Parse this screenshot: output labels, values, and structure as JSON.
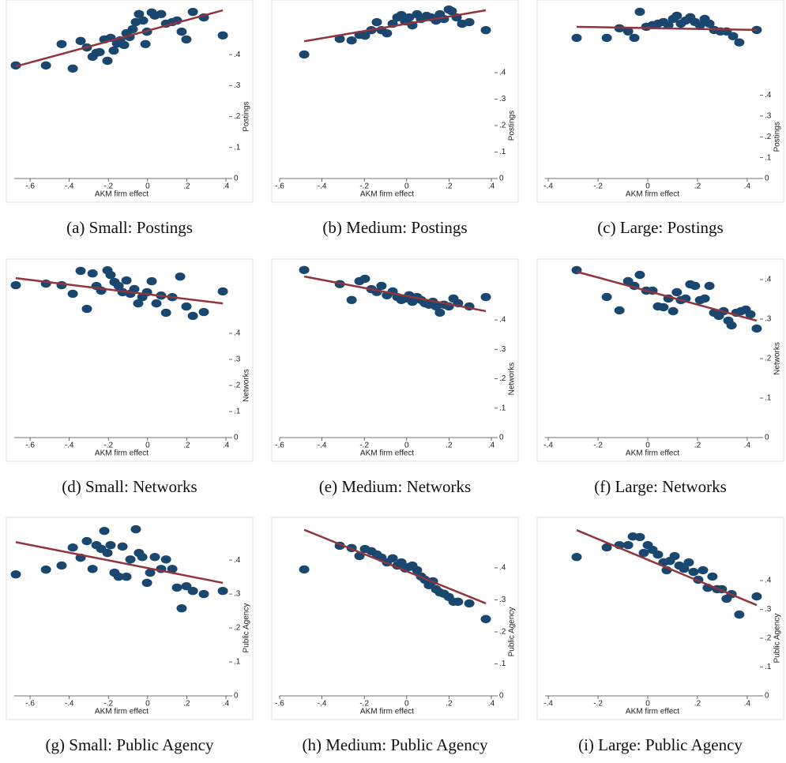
{
  "chart_data": [
    {
      "type": "scatter",
      "caption": "(a) Small: Postings",
      "xlabel": "AKM firm effect",
      "ylabel": "Postings",
      "x": [
        -0.673,
        -0.519,
        -0.439,
        -0.382,
        -0.342,
        -0.31,
        -0.281,
        -0.261,
        -0.245,
        -0.221,
        -0.205,
        -0.189,
        -0.173,
        -0.156,
        -0.14,
        -0.12,
        -0.108,
        -0.092,
        -0.076,
        -0.06,
        -0.044,
        -0.023,
        -0.011,
        -0.003,
        0.021,
        0.037,
        0.069,
        0.094,
        0.126,
        0.15,
        0.174,
        0.198,
        0.231,
        0.287,
        0.384
      ],
      "y": [
        0.365,
        0.365,
        0.434,
        0.355,
        0.444,
        0.423,
        0.393,
        0.406,
        0.408,
        0.449,
        0.38,
        0.454,
        0.413,
        0.436,
        0.446,
        0.431,
        0.469,
        0.457,
        0.482,
        0.505,
        0.531,
        0.51,
        0.434,
        0.474,
        0.536,
        0.526,
        0.531,
        0.5,
        0.505,
        0.51,
        0.474,
        0.449,
        0.538,
        0.52,
        0.462
      ],
      "fit_x": [
        -0.673,
        0.384
      ],
      "fit_y": [
        0.362,
        0.543
      ],
      "xlim": [
        -0.681,
        0.416
      ],
      "ylim": [
        0,
        0.561
      ],
      "xticks": [
        {
          "value": -0.6,
          "label": "-.6"
        },
        {
          "value": -0.4,
          "label": "-.4"
        },
        {
          "value": -0.2,
          "label": "-.2"
        },
        0,
        {
          "value": 0.2,
          "label": ".2"
        },
        {
          "value": 0.4,
          "label": ".4"
        }
      ],
      "yticks": [
        0,
        {
          "value": 0.1,
          "label": ".1"
        },
        {
          "value": 0.2,
          "label": ".2"
        },
        {
          "value": 0.3,
          "label": ".3"
        },
        {
          "value": 0.4,
          "label": ".4"
        }
      ],
      "color": "#1a476f",
      "fit_color": "#90353b"
    },
    {
      "type": "scatter",
      "caption": "(b) Medium: Postings",
      "xlabel": "AKM firm effect",
      "ylabel": "Postings",
      "x": [
        -0.484,
        -0.316,
        -0.26,
        -0.223,
        -0.197,
        -0.167,
        -0.141,
        -0.119,
        -0.093,
        -0.066,
        -0.044,
        -0.025,
        -0.007,
        0.012,
        0.027,
        0.049,
        0.068,
        0.094,
        0.116,
        0.139,
        0.157,
        0.176,
        0.199,
        0.213,
        0.236,
        0.262,
        0.296,
        0.374
      ],
      "y": [
        0.469,
        0.528,
        0.522,
        0.543,
        0.54,
        0.561,
        0.591,
        0.561,
        0.549,
        0.585,
        0.609,
        0.618,
        0.594,
        0.609,
        0.579,
        0.621,
        0.603,
        0.615,
        0.609,
        0.597,
        0.621,
        0.603,
        0.639,
        0.633,
        0.609,
        0.585,
        0.591,
        0.561
      ],
      "fit_x": [
        -0.484,
        0.374
      ],
      "fit_y": [
        0.519,
        0.636
      ],
      "xlim": [
        -0.6,
        0.415
      ],
      "ylim": [
        0,
        0.657
      ],
      "xticks": [
        {
          "value": -0.6,
          "label": "-.6"
        },
        {
          "value": -0.4,
          "label": "-.4"
        },
        {
          "value": -0.2,
          "label": "-.2"
        },
        0,
        {
          "value": 0.2,
          "label": ".2"
        },
        {
          "value": 0.4,
          "label": ".4"
        }
      ],
      "yticks": [
        0,
        {
          "value": 0.1,
          "label": ".1"
        },
        {
          "value": 0.2,
          "label": ".2"
        },
        {
          "value": 0.3,
          "label": ".3"
        },
        {
          "value": 0.4,
          "label": ".4"
        }
      ],
      "color": "#1a476f",
      "fit_color": "#90353b"
    },
    {
      "type": "scatter",
      "caption": "(c) Large: Postings",
      "xlabel": "AKM firm effect",
      "ylabel": "Postings",
      "x": [
        -0.286,
        -0.165,
        -0.114,
        -0.079,
        -0.054,
        -0.032,
        -0.006,
        0.019,
        0.041,
        0.063,
        0.083,
        0.102,
        0.117,
        0.133,
        0.152,
        0.171,
        0.19,
        0.21,
        0.229,
        0.248,
        0.267,
        0.292,
        0.317,
        0.343,
        0.368,
        0.438
      ],
      "y": [
        0.675,
        0.675,
        0.721,
        0.706,
        0.675,
        0.8,
        0.728,
        0.736,
        0.743,
        0.751,
        0.736,
        0.766,
        0.781,
        0.743,
        0.758,
        0.774,
        0.751,
        0.736,
        0.766,
        0.743,
        0.713,
        0.706,
        0.706,
        0.683,
        0.653,
        0.713
      ],
      "fit_x": [
        -0.286,
        0.438
      ],
      "fit_y": [
        0.728,
        0.713
      ],
      "xlim": [
        -0.413,
        0.451
      ],
      "ylim": [
        0,
        0.834
      ],
      "xticks": [
        {
          "value": -0.4,
          "label": "-.4"
        },
        {
          "value": -0.2,
          "label": "-.2"
        },
        0,
        {
          "value": 0.2,
          "label": ".2"
        },
        {
          "value": 0.4,
          "label": ".4"
        }
      ],
      "yticks": [
        0,
        {
          "value": 0.1,
          "label": ".1"
        },
        {
          "value": 0.2,
          "label": ".2"
        },
        {
          "value": 0.3,
          "label": ".3"
        },
        {
          "value": 0.4,
          "label": ".4"
        }
      ],
      "color": "#1a476f",
      "fit_color": "#90353b"
    },
    {
      "type": "scatter",
      "caption": "(d) Small: Networks",
      "xlabel": "AKM firm effect",
      "ylabel": "Networks",
      "x": [
        -0.673,
        -0.519,
        -0.439,
        -0.382,
        -0.342,
        -0.31,
        -0.281,
        -0.261,
        -0.237,
        -0.205,
        -0.189,
        -0.169,
        -0.148,
        -0.128,
        -0.108,
        -0.088,
        -0.068,
        -0.048,
        -0.027,
        -0.003,
        0.021,
        0.045,
        0.069,
        0.094,
        0.126,
        0.166,
        0.198,
        0.231,
        0.287,
        0.384
      ],
      "y": [
        0.585,
        0.591,
        0.585,
        0.552,
        0.64,
        0.494,
        0.63,
        0.582,
        0.564,
        0.642,
        0.624,
        0.597,
        0.582,
        0.558,
        0.603,
        0.552,
        0.57,
        0.515,
        0.539,
        0.558,
        0.6,
        0.515,
        0.545,
        0.479,
        0.539,
        0.618,
        0.503,
        0.467,
        0.482,
        0.561
      ],
      "fit_x": [
        -0.673,
        0.384
      ],
      "fit_y": [
        0.612,
        0.515
      ],
      "xlim": [
        -0.681,
        0.416
      ],
      "ylim": [
        0,
        0.667
      ],
      "xticks": [
        {
          "value": -0.6,
          "label": "-.6"
        },
        {
          "value": -0.4,
          "label": "-.4"
        },
        {
          "value": -0.2,
          "label": "-.2"
        },
        0,
        {
          "value": 0.2,
          "label": ".2"
        },
        {
          "value": 0.4,
          "label": ".4"
        }
      ],
      "yticks": [
        0,
        {
          "value": 0.1,
          "label": ".1"
        },
        {
          "value": 0.2,
          "label": ".2"
        },
        {
          "value": 0.3,
          "label": ".3"
        },
        {
          "value": 0.4,
          "label": ".4"
        }
      ],
      "color": "#1a476f",
      "fit_color": "#90353b"
    },
    {
      "type": "scatter",
      "caption": "(e) Medium: Networks",
      "xlabel": "AKM firm effect",
      "ylabel": "Networks",
      "x": [
        -0.484,
        -0.316,
        -0.26,
        -0.223,
        -0.197,
        -0.167,
        -0.141,
        -0.119,
        -0.093,
        -0.066,
        -0.044,
        -0.025,
        -0.007,
        0.012,
        0.027,
        0.049,
        0.068,
        0.086,
        0.105,
        0.124,
        0.139,
        0.157,
        0.176,
        0.199,
        0.221,
        0.243,
        0.296,
        0.374
      ],
      "y": [
        0.57,
        0.522,
        0.468,
        0.532,
        0.54,
        0.505,
        0.495,
        0.516,
        0.484,
        0.497,
        0.478,
        0.468,
        0.473,
        0.484,
        0.462,
        0.478,
        0.468,
        0.457,
        0.452,
        0.462,
        0.446,
        0.425,
        0.452,
        0.446,
        0.473,
        0.457,
        0.446,
        0.478
      ],
      "fit_x": [
        -0.484,
        0.374
      ],
      "fit_y": [
        0.548,
        0.43
      ],
      "xlim": [
        -0.6,
        0.415
      ],
      "ylim": [
        0,
        0.591
      ],
      "xticks": [
        {
          "value": -0.6,
          "label": "-.6"
        },
        {
          "value": -0.4,
          "label": "-.4"
        },
        {
          "value": -0.2,
          "label": "-.2"
        },
        0,
        {
          "value": 0.2,
          "label": ".2"
        },
        {
          "value": 0.4,
          "label": ".4"
        }
      ],
      "yticks": [
        0,
        {
          "value": 0.1,
          "label": ".1"
        },
        {
          "value": 0.2,
          "label": ".2"
        },
        {
          "value": 0.3,
          "label": ".3"
        },
        {
          "value": 0.4,
          "label": ".4"
        }
      ],
      "color": "#1a476f",
      "fit_color": "#90353b"
    },
    {
      "type": "scatter",
      "caption": "(f) Large: Networks",
      "xlabel": "AKM firm effect",
      "ylabel": "Networks",
      "x": [
        -0.286,
        -0.165,
        -0.114,
        -0.079,
        -0.054,
        -0.032,
        -0.006,
        0.019,
        0.041,
        0.063,
        0.083,
        0.102,
        0.117,
        0.133,
        0.152,
        0.171,
        0.19,
        0.21,
        0.229,
        0.248,
        0.267,
        0.286,
        0.305,
        0.324,
        0.337,
        0.356,
        0.375,
        0.394,
        0.413,
        0.438
      ],
      "y": [
        0.424,
        0.356,
        0.322,
        0.396,
        0.384,
        0.412,
        0.372,
        0.372,
        0.332,
        0.33,
        0.352,
        0.32,
        0.368,
        0.348,
        0.352,
        0.388,
        0.384,
        0.348,
        0.352,
        0.384,
        0.316,
        0.308,
        0.32,
        0.296,
        0.284,
        0.316,
        0.32,
        0.324,
        0.312,
        0.276
      ],
      "fit_x": [
        -0.286,
        0.438
      ],
      "fit_y": [
        0.42,
        0.296
      ],
      "xlim": [
        -0.413,
        0.451
      ],
      "ylim": [
        0,
        0.44
      ],
      "xticks": [
        {
          "value": -0.4,
          "label": "-.4"
        },
        {
          "value": -0.2,
          "label": "-.2"
        },
        0,
        {
          "value": 0.2,
          "label": ".2"
        },
        {
          "value": 0.4,
          "label": ".4"
        }
      ],
      "yticks": [
        0,
        {
          "value": 0.1,
          "label": ".1"
        },
        {
          "value": 0.2,
          "label": ".2"
        },
        {
          "value": 0.3,
          "label": ".3"
        },
        {
          "value": 0.4,
          "label": ".4"
        }
      ],
      "color": "#1a476f",
      "fit_color": "#90353b"
    },
    {
      "type": "scatter",
      "caption": "(g) Small: Public Agency",
      "xlabel": "AKM firm effect",
      "ylabel": "Public Agency",
      "x": [
        -0.673,
        -0.519,
        -0.439,
        -0.382,
        -0.342,
        -0.31,
        -0.281,
        -0.261,
        -0.237,
        -0.221,
        -0.205,
        -0.189,
        -0.169,
        -0.148,
        -0.128,
        -0.108,
        -0.088,
        -0.06,
        -0.044,
        -0.027,
        -0.003,
        0.013,
        0.037,
        0.069,
        0.094,
        0.126,
        0.15,
        0.174,
        0.198,
        0.231,
        0.287,
        0.384
      ],
      "y": [
        0.358,
        0.372,
        0.384,
        0.437,
        0.407,
        0.456,
        0.374,
        0.444,
        0.433,
        0.486,
        0.421,
        0.444,
        0.363,
        0.351,
        0.44,
        0.351,
        0.402,
        0.491,
        0.421,
        0.409,
        0.333,
        0.363,
        0.409,
        0.374,
        0.402,
        0.374,
        0.319,
        0.258,
        0.323,
        0.309,
        0.3,
        0.309
      ],
      "fit_x": [
        -0.673,
        0.384
      ],
      "fit_y": [
        0.453,
        0.333
      ],
      "xlim": [
        -0.681,
        0.416
      ],
      "ylim": [
        0,
        0.512
      ],
      "xticks": [
        {
          "value": -0.6,
          "label": "-.6"
        },
        {
          "value": -0.4,
          "label": "-.4"
        },
        {
          "value": -0.2,
          "label": "-.2"
        },
        0,
        {
          "value": 0.2,
          "label": ".2"
        },
        {
          "value": 0.4,
          "label": ".4"
        }
      ],
      "yticks": [
        0,
        {
          "value": 0.1,
          "label": ".1"
        },
        {
          "value": 0.2,
          "label": ".2"
        },
        {
          "value": 0.3,
          "label": ".3"
        },
        {
          "value": 0.4,
          "label": ".4"
        }
      ],
      "color": "#1a476f",
      "fit_color": "#90353b"
    },
    {
      "type": "scatter",
      "caption": "(h) Medium: Public Agency",
      "xlabel": "AKM firm effect",
      "ylabel": "Public Agency",
      "x": [
        -0.484,
        -0.316,
        -0.26,
        -0.223,
        -0.197,
        -0.167,
        -0.141,
        -0.119,
        -0.093,
        -0.066,
        -0.044,
        -0.025,
        -0.007,
        0.012,
        0.027,
        0.049,
        0.068,
        0.086,
        0.105,
        0.124,
        0.139,
        0.157,
        0.176,
        0.199,
        0.221,
        0.243,
        0.296,
        0.374
      ],
      "y": [
        0.395,
        0.469,
        0.462,
        0.437,
        0.459,
        0.452,
        0.442,
        0.432,
        0.417,
        0.43,
        0.407,
        0.417,
        0.398,
        0.403,
        0.407,
        0.393,
        0.373,
        0.363,
        0.346,
        0.358,
        0.333,
        0.323,
        0.319,
        0.309,
        0.294,
        0.294,
        0.289,
        0.24
      ],
      "fit_x": [
        -0.484,
        0.374
      ],
      "fit_y": [
        0.519,
        0.289
      ],
      "xlim": [
        -0.6,
        0.415
      ],
      "ylim": [
        0,
        0.543
      ],
      "xticks": [
        {
          "value": -0.6,
          "label": "-.6"
        },
        {
          "value": -0.4,
          "label": "-.4"
        },
        {
          "value": -0.2,
          "label": "-.2"
        },
        0,
        {
          "value": 0.2,
          "label": ".2"
        },
        {
          "value": 0.4,
          "label": ".4"
        }
      ],
      "yticks": [
        0,
        {
          "value": 0.1,
          "label": ".1"
        },
        {
          "value": 0.2,
          "label": ".2"
        },
        {
          "value": 0.3,
          "label": ".3"
        },
        {
          "value": 0.4,
          "label": ".4"
        }
      ],
      "color": "#1a476f",
      "fit_color": "#90353b"
    },
    {
      "type": "scatter",
      "caption": "(i) Large: Public Agency",
      "xlabel": "AKM firm effect",
      "ylabel": "Public Agency",
      "x": [
        -0.286,
        -0.165,
        -0.114,
        -0.079,
        -0.06,
        -0.032,
        -0.016,
        0.0,
        0.019,
        0.041,
        0.063,
        0.076,
        0.089,
        0.108,
        0.127,
        0.146,
        0.165,
        0.184,
        0.203,
        0.222,
        0.241,
        0.26,
        0.279,
        0.298,
        0.317,
        0.337,
        0.368,
        0.438
      ],
      "y": [
        0.482,
        0.515,
        0.523,
        0.523,
        0.553,
        0.551,
        0.496,
        0.523,
        0.507,
        0.49,
        0.463,
        0.436,
        0.468,
        0.485,
        0.452,
        0.441,
        0.463,
        0.43,
        0.403,
        0.436,
        0.375,
        0.414,
        0.37,
        0.37,
        0.337,
        0.353,
        0.282,
        0.345
      ],
      "fit_x": [
        -0.286,
        0.438
      ],
      "fit_y": [
        0.575,
        0.315
      ],
      "xlim": [
        -0.413,
        0.451
      ],
      "ylim": [
        0,
        0.603
      ],
      "xticks": [
        {
          "value": -0.4,
          "label": "-.4"
        },
        {
          "value": -0.2,
          "label": "-.2"
        },
        0,
        {
          "value": 0.2,
          "label": ".2"
        },
        {
          "value": 0.4,
          "label": ".4"
        }
      ],
      "yticks": [
        0,
        {
          "value": 0.1,
          "label": ".1"
        },
        {
          "value": 0.2,
          "label": ".2"
        },
        {
          "value": 0.3,
          "label": ".3"
        },
        {
          "value": 0.4,
          "label": ".4"
        }
      ],
      "color": "#1a476f",
      "fit_color": "#90353b"
    }
  ]
}
